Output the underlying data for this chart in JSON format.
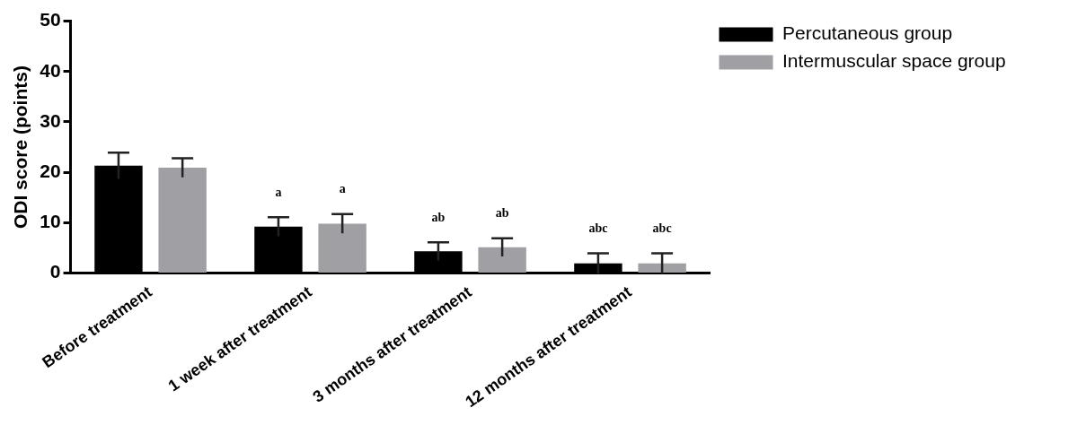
{
  "chart_data": {
    "type": "bar",
    "ylabel": "ODI score (points)",
    "categories": [
      "Before treatment",
      "1 week after treatment",
      "3 months after treatment",
      "12 months after treatment"
    ],
    "series": [
      {
        "name": "Percutaneous group",
        "color": "#000000",
        "values": [
          21.3,
          9.2,
          4.3,
          1.9
        ],
        "errors": [
          2.6,
          1.9,
          1.8,
          2.0
        ],
        "value_labels": [
          null,
          "a",
          "ab",
          "abc"
        ]
      },
      {
        "name": "Intermuscular space group",
        "color": "#a0a0a4",
        "values": [
          20.9,
          9.8,
          5.1,
          1.9
        ],
        "errors": [
          1.9,
          1.9,
          1.8,
          2.0
        ],
        "value_labels": [
          null,
          "a",
          "ab",
          "abc"
        ]
      }
    ],
    "ylim": [
      0,
      50
    ],
    "yticks": [
      0,
      10,
      20,
      30,
      40,
      50
    ],
    "grid": false,
    "legend": "top right"
  }
}
